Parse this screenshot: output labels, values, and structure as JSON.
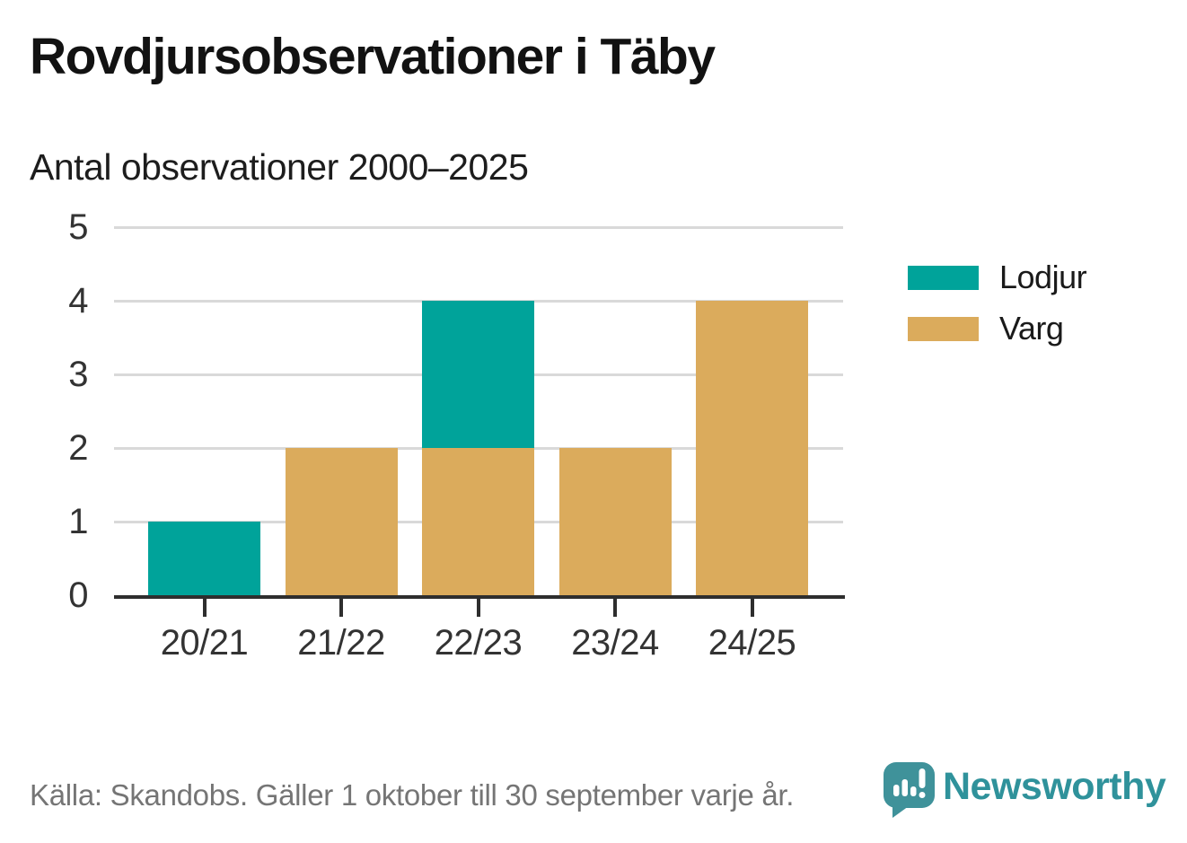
{
  "page": {
    "title": "Rovdjursobservationer i Täby",
    "subtitle": "Antal observationer 2000–2025",
    "source": "Källa: Skandobs. Gäller 1 oktober till 30 september varje år.",
    "brand": "Newsworthy"
  },
  "colors": {
    "lodjur": "#00a39a",
    "varg": "#dbab5c",
    "axis": "#2e2e2e",
    "gridline": "#d9d9d9",
    "brand_teal": "#3f929a",
    "source_gray": "#757575"
  },
  "chart_data": {
    "type": "bar",
    "subtype": "stacked_vertical",
    "title": "Rovdjursobservationer i Täby",
    "subtitle": "Antal observationer 2000–2025",
    "categories": [
      "20/21",
      "21/22",
      "22/23",
      "23/24",
      "24/25"
    ],
    "series": [
      {
        "name": "Lodjur",
        "color": "#00a39a",
        "values": [
          1,
          0,
          2,
          0,
          0
        ]
      },
      {
        "name": "Varg",
        "color": "#dbab5c",
        "values": [
          0,
          2,
          2,
          2,
          4
        ]
      }
    ],
    "stack_bottom_to_top": [
      "Varg",
      "Lodjur"
    ],
    "totals": [
      1,
      2,
      4,
      2,
      4
    ],
    "xlabel": "",
    "ylabel": "",
    "ylim": [
      0,
      5
    ],
    "yticks": [
      0,
      1,
      2,
      3,
      4,
      5
    ],
    "grid": "horizontal",
    "legend_position": "right"
  }
}
